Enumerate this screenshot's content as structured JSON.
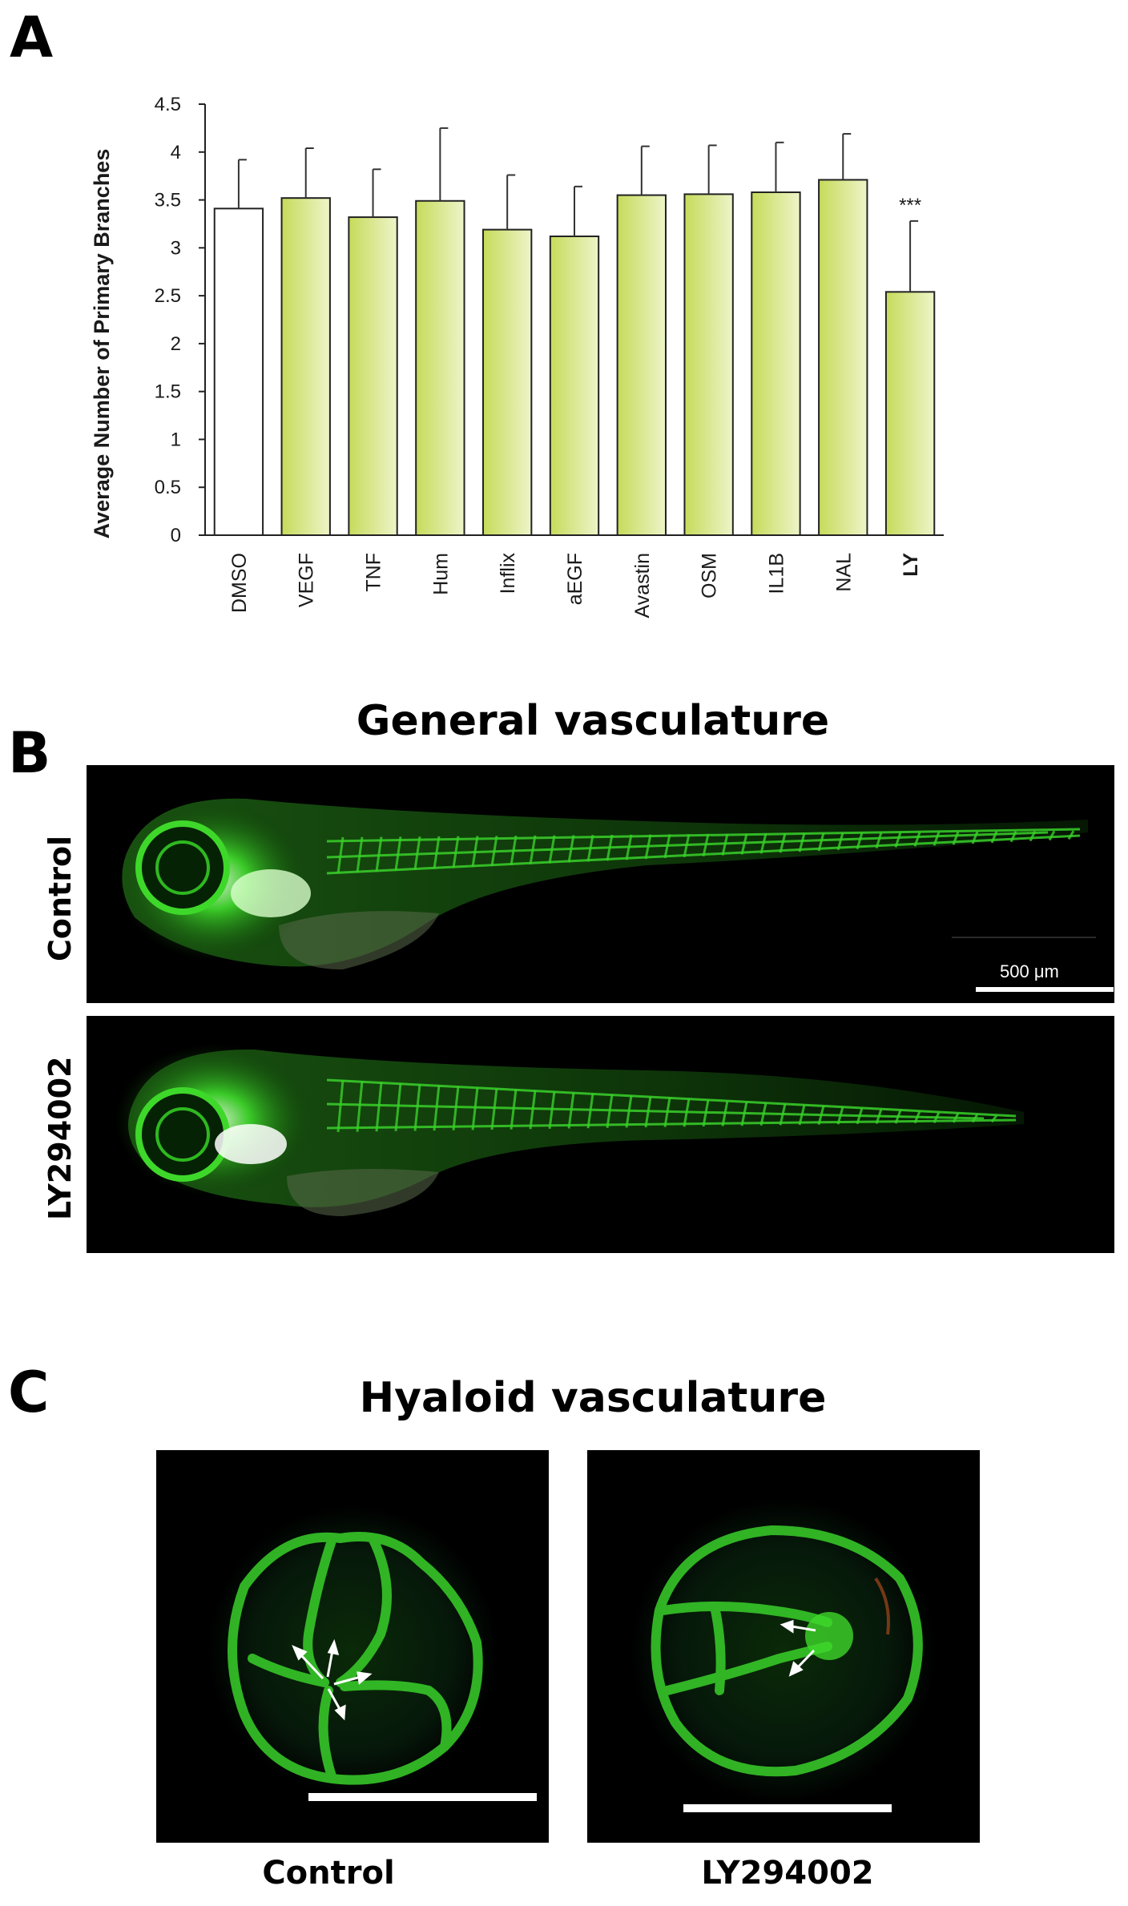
{
  "panels": {
    "a_letter": "A",
    "b_letter": "B",
    "c_letter": "C",
    "b_title": "General vasculature",
    "c_title": "Hyaloid vasculature",
    "b_row1_label": "Control",
    "b_row2_label": "LY294002",
    "b_scale_label": "500 μm",
    "c_left_label": "Control",
    "c_right_label": "LY294002"
  },
  "colors": {
    "bar_fill_start": "#c6db5a",
    "bar_fill_end": "#edf3c8",
    "control_bar": "#ffffff",
    "vessel_green": "#39d02a"
  },
  "chart_data": {
    "type": "bar",
    "title": "",
    "xlabel": "",
    "ylabel": "Average Number of Primary Branches",
    "ylim": [
      0,
      4.5
    ],
    "yticks": [
      "0",
      "0.5",
      "1",
      "1.5",
      "2",
      "2.5",
      "3",
      "3.5",
      "4",
      "4.5"
    ],
    "categories": [
      "DMSO",
      "VEGF",
      "TNF",
      "Hum",
      "Inflix",
      "aEGF",
      "Avastin",
      "OSM",
      "IL1B",
      "NAL",
      "LY"
    ],
    "values": [
      3.41,
      3.52,
      3.32,
      3.49,
      3.19,
      3.12,
      3.55,
      3.56,
      3.58,
      3.71,
      2.54
    ],
    "errors": [
      0.51,
      0.52,
      0.5,
      0.76,
      0.57,
      0.52,
      0.51,
      0.51,
      0.52,
      0.48,
      0.74
    ],
    "annotations": [
      {
        "category": "LY",
        "text": "***"
      }
    ],
    "grid": false
  }
}
